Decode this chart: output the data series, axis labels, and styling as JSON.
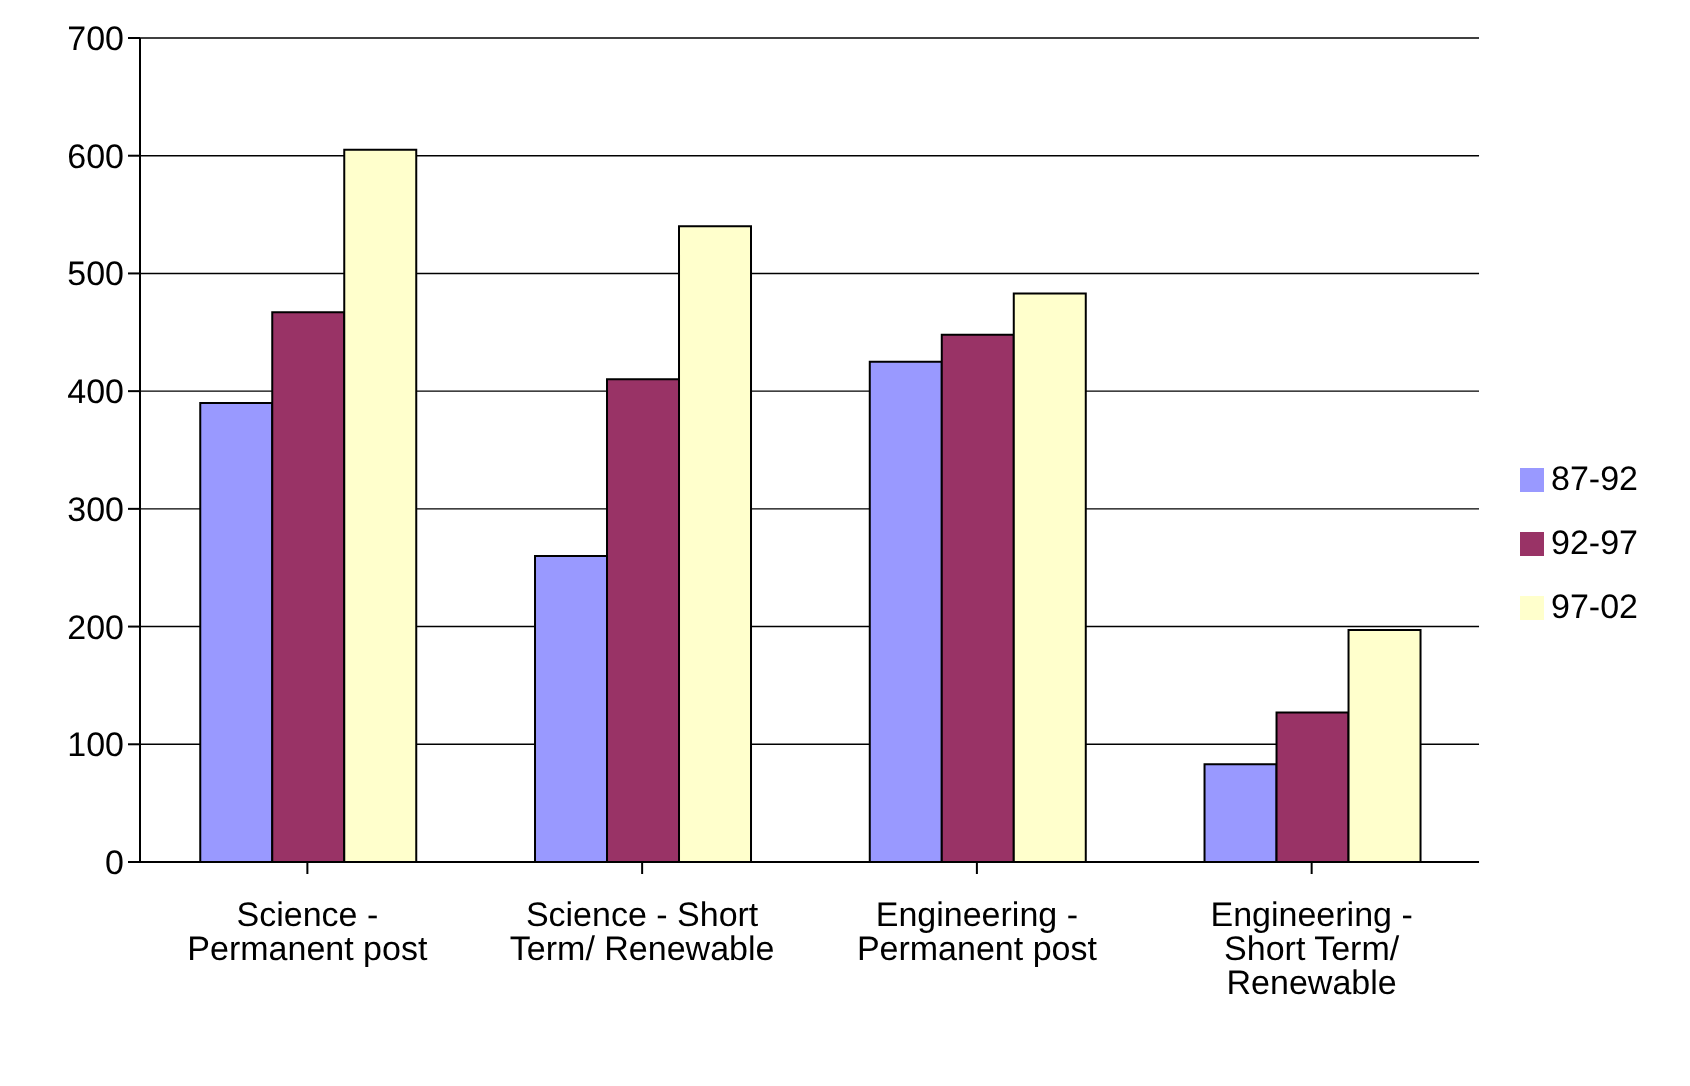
{
  "chart_data": {
    "type": "bar",
    "categories": [
      "Science - Permanent post",
      "Science - Short Term/ Renewable",
      "Engineering - Permanent post",
      "Engineering - Short Term/ Renewable"
    ],
    "series": [
      {
        "name": "87-92",
        "color": "#9999ff",
        "values": [
          390,
          260,
          425,
          83
        ]
      },
      {
        "name": "92-97",
        "color": "#993366",
        "values": [
          467,
          410,
          448,
          127
        ]
      },
      {
        "name": "97-02",
        "color": "#ffffcc",
        "values": [
          605,
          540,
          483,
          197
        ]
      }
    ],
    "ylim": [
      0,
      700
    ],
    "yticks": [
      0,
      100,
      200,
      300,
      400,
      500,
      600,
      700
    ],
    "grid": "y",
    "legend": "right"
  }
}
